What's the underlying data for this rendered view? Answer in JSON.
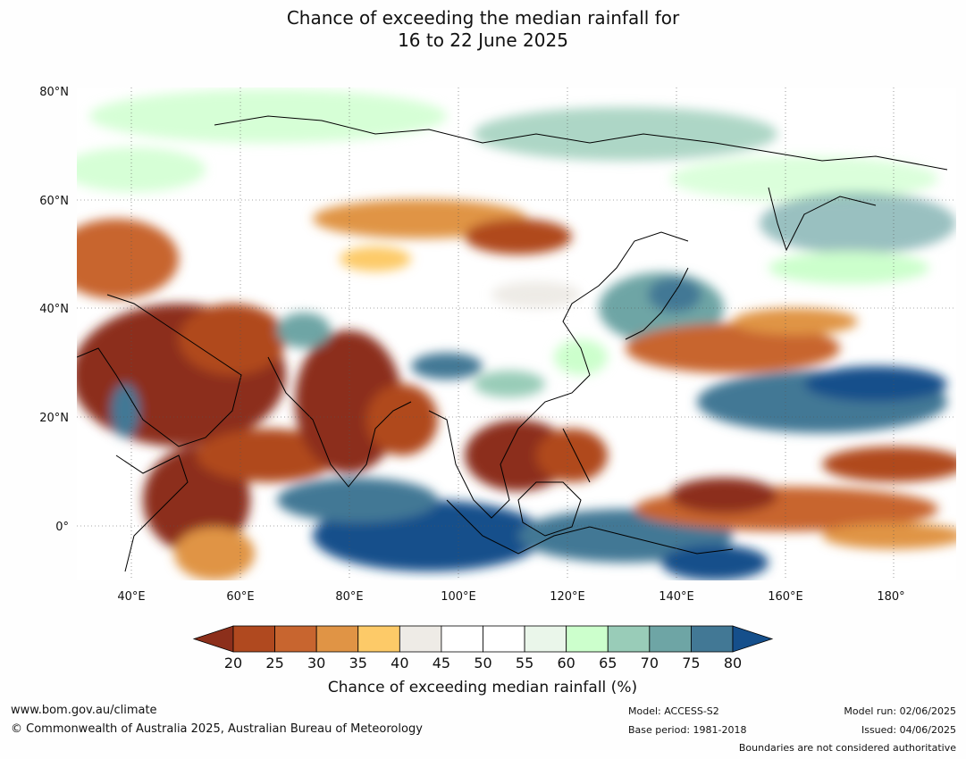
{
  "title": {
    "line1": "Chance of exceeding the median rainfall for",
    "line2": "16 to 22 June 2025"
  },
  "map": {
    "lat_ticks": [
      "80°N",
      "60°N",
      "40°N",
      "20°N",
      "0°"
    ],
    "lon_ticks": [
      "40°E",
      "60°E",
      "80°E",
      "100°E",
      "120°E",
      "140°E",
      "160°E",
      "180°"
    ]
  },
  "colorbar": {
    "ticks": [
      "20",
      "25",
      "30",
      "35",
      "40",
      "45",
      "50",
      "55",
      "60",
      "65",
      "70",
      "75",
      "80"
    ],
    "colors": [
      "#8c2f1b",
      "#b0491f",
      "#c8652f",
      "#e09445",
      "#fdca68",
      "#eeebe6",
      "#ffffff",
      "#ffffff",
      "#eaf6ea",
      "#ccffcc",
      "#99ccb8",
      "#6ea5a5",
      "#427895",
      "#154f8b"
    ],
    "label": "Chance of exceeding median rainfall (%)"
  },
  "footer": {
    "website": "www.bom.gov.au/climate",
    "copyright": "© Commonwealth of Australia 2025, Australian Bureau of Meteorology",
    "model": "Model: ACCESS-S2",
    "base_period": "Base period: 1981-2018",
    "model_run": "Model run: 02/06/2025",
    "issued": "Issued: 04/06/2025",
    "disclaimer": "Boundaries are not considered authoritative"
  }
}
